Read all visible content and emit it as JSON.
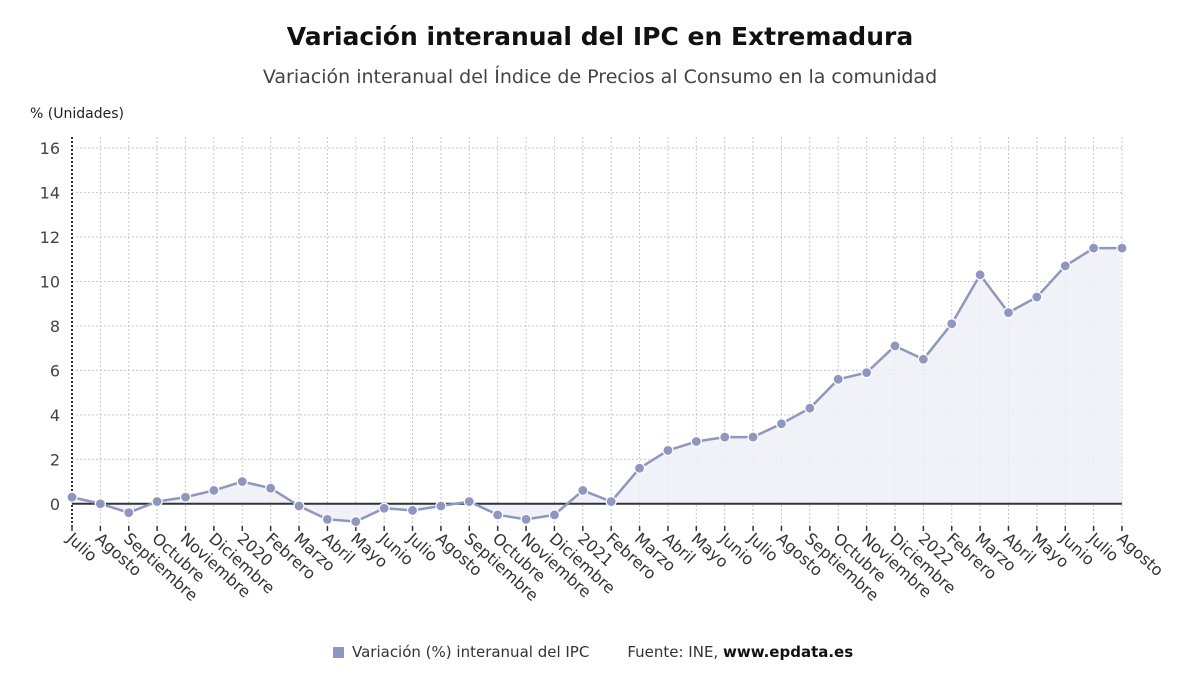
{
  "header": {
    "title": "Variación interanual del IPC en Extremadura",
    "subtitle": "Variación interanual del Índice de Precios al Consumo en la comunidad",
    "unit": "% (Unidades)"
  },
  "footer": {
    "legend_label": "Variación (%) interanual del IPC",
    "source_prefix": "Fuente: INE,",
    "source_site": "www.epdata.es"
  },
  "colors": {
    "series": "#8f96bf",
    "fill": "#eef0f6",
    "grid": "#c8c8c8",
    "zero": "#333333"
  },
  "chart_data": {
    "type": "area",
    "title": "Variación interanual del IPC en Extremadura",
    "subtitle": "Variación interanual del Índice de Precios al Consumo en la comunidad",
    "ylabel": "% (Unidades)",
    "ylim": [
      -1,
      16.5
    ],
    "yticks": [
      0,
      2,
      4,
      6,
      8,
      10,
      12,
      14,
      16
    ],
    "grid": true,
    "legend": "bottom",
    "categories": [
      "Julio",
      "Agosto",
      "Septiembre",
      "Octubre",
      "Noviembre",
      "Diciembre",
      "2020",
      "Febrero",
      "Marzo",
      "Abril",
      "Mayo",
      "Junio",
      "Julio",
      "Agosto",
      "Septiembre",
      "Octubre",
      "Noviembre",
      "Diciembre",
      "2021",
      "Febrero",
      "Marzo",
      "Abril",
      "Mayo",
      "Junio",
      "Julio",
      "Agosto",
      "Septiembre",
      "Octubre",
      "Noviembre",
      "Diciembre",
      "2022",
      "Febrero",
      "Marzo",
      "Abril",
      "Mayo",
      "Junio",
      "Julio",
      "Agosto"
    ],
    "series": [
      {
        "name": "Variación (%) interanual del IPC",
        "values": [
          0.3,
          0.0,
          -0.4,
          0.1,
          0.3,
          0.6,
          1.0,
          0.7,
          -0.1,
          -0.7,
          -0.8,
          -0.2,
          -0.3,
          -0.1,
          0.1,
          -0.5,
          -0.7,
          -0.5,
          0.6,
          0.1,
          1.6,
          2.4,
          2.8,
          3.0,
          3.0,
          3.6,
          4.3,
          5.6,
          5.9,
          7.1,
          6.5,
          8.1,
          10.3,
          8.6,
          9.3,
          10.7,
          11.5,
          11.5
        ]
      }
    ]
  }
}
